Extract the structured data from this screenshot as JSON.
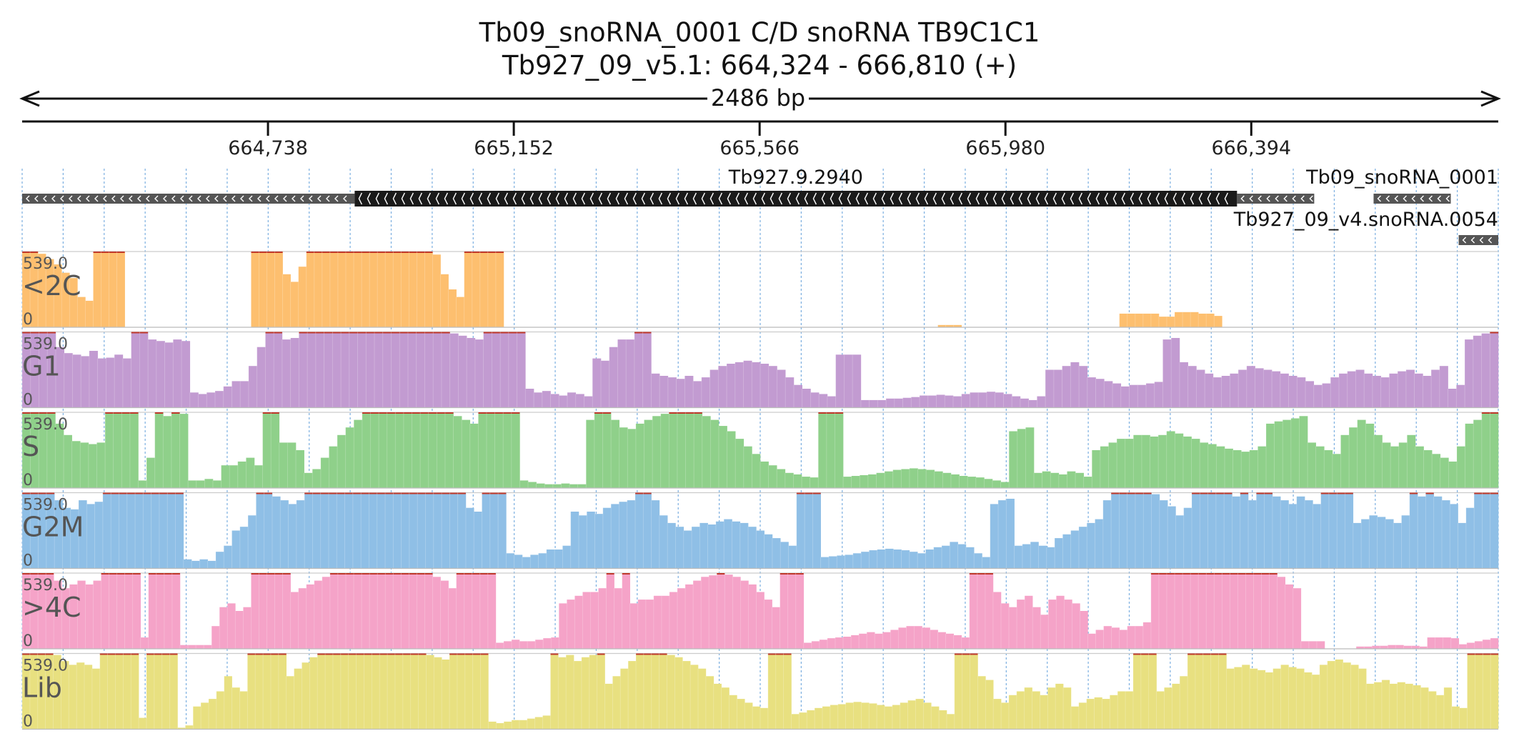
{
  "header": {
    "feature_line": "Tb09_snoRNA_0001  C/D snoRNA  TB9C1C1",
    "locus_line": "Tb927_09_v5.1: 664,324 - 666,810 (+)"
  },
  "ruler": {
    "span_label": "2486 bp",
    "start": 664324,
    "end": 666810,
    "ticks": [
      "664,738",
      "665,152",
      "665,566",
      "665,980",
      "666,394"
    ],
    "tick_values": [
      664738,
      665152,
      665566,
      665980,
      666394
    ]
  },
  "genes": [
    {
      "name": "Tb927.9.2940",
      "label_visible": true,
      "row": 0,
      "strand": "-",
      "start": 664324,
      "end": 666524,
      "cds_start": 664884,
      "cds_end": 666370
    },
    {
      "name": "Tb09_snoRNA_0001",
      "label_visible": true,
      "row": 0,
      "strand": "-",
      "start": 666524,
      "end": 666810,
      "segments": [
        [
          666370,
          666524
        ],
        [
          666600,
          666730
        ]
      ]
    },
    {
      "name": "Tb927_09_v4.snoRNA.0054",
      "label_visible": true,
      "row": 1,
      "strand": "-",
      "start": 666700,
      "end": 666810
    }
  ],
  "tracks": [
    {
      "name": "<2C",
      "color": "#fdbf6f",
      "max_label": "539.0",
      "min_label": "0",
      "values": [
        1,
        1,
        0.97,
        0.9,
        0.83,
        0.72,
        0.65,
        0.4,
        0.35,
        1,
        1,
        1,
        1,
        0,
        0,
        0,
        0,
        0,
        0,
        0,
        0,
        0,
        0,
        0,
        0,
        0,
        0,
        0,
        0,
        1,
        1,
        1,
        1,
        0.7,
        0.6,
        0.8,
        1,
        1,
        1,
        1,
        1,
        1,
        1,
        1,
        1,
        1,
        1,
        1,
        1,
        1,
        1,
        1,
        0.96,
        0.7,
        0.5,
        0.4,
        1,
        1,
        1,
        1,
        1,
        0,
        0,
        0,
        0,
        0,
        0,
        0,
        0,
        0,
        0,
        0,
        0,
        0,
        0,
        0,
        0,
        0,
        0,
        0,
        0,
        0,
        0,
        0,
        0,
        0,
        0,
        0,
        0,
        0,
        0,
        0,
        0,
        0,
        0,
        0,
        0,
        0,
        0,
        0,
        0,
        0,
        0,
        0,
        0,
        0,
        0,
        0,
        0,
        0,
        0,
        0,
        0,
        0,
        0,
        0,
        0.03,
        0.03,
        0.03,
        0,
        0,
        0,
        0,
        0,
        0,
        0,
        0,
        0,
        0,
        0,
        0,
        0,
        0,
        0,
        0,
        0,
        0,
        0,
        0,
        0.18,
        0.18,
        0.18,
        0.18,
        0.18,
        0.14,
        0.14,
        0.2,
        0.2,
        0.2,
        0.18,
        0.18,
        0.15,
        0,
        0,
        0,
        0,
        0,
        0,
        0,
        0,
        0,
        0,
        0,
        0,
        0,
        0,
        0,
        0,
        0,
        0,
        0,
        0,
        0,
        0,
        0,
        0,
        0,
        0,
        0,
        0,
        0,
        0,
        0,
        0,
        0,
        0,
        0
      ]
    },
    {
      "name": "G1",
      "color": "#c29bd1",
      "max_label": "539.0",
      "min_label": "0",
      "values": [
        1,
        1,
        1,
        1,
        0.8,
        0.72,
        0.7,
        0.68,
        0.75,
        0.65,
        0.66,
        0.7,
        0.65,
        1,
        1,
        0.9,
        0.88,
        0.86,
        0.9,
        0.88,
        0.2,
        0.18,
        0.2,
        0.22,
        0.28,
        0.35,
        0.35,
        0.55,
        0.8,
        1,
        1,
        0.9,
        0.92,
        1,
        1,
        1,
        1,
        1,
        1,
        1,
        1,
        1,
        1,
        1,
        1,
        1,
        1,
        1,
        1,
        1,
        1,
        0.98,
        0.95,
        0.92,
        0.9,
        1,
        1,
        1,
        1,
        1,
        0.25,
        0.2,
        0.22,
        0.18,
        0.16,
        0.2,
        0.18,
        0.15,
        0.65,
        0.62,
        0.8,
        0.9,
        0.9,
        1,
        1,
        0.45,
        0.42,
        0.4,
        0.38,
        0.42,
        0.35,
        0.4,
        0.5,
        0.55,
        0.58,
        0.6,
        0.62,
        0.6,
        0.58,
        0.55,
        0.5,
        0.4,
        0.3,
        0.25,
        0.2,
        0.18,
        0.15,
        0.7,
        0.7,
        0.7,
        0.1,
        0.1,
        0.1,
        0.12,
        0.12,
        0.13,
        0.14,
        0.16,
        0.16,
        0.17,
        0.16,
        0.15,
        0.18,
        0.2,
        0.2,
        0.21,
        0.2,
        0.18,
        0.15,
        0.12,
        0.1,
        0.15,
        0.5,
        0.5,
        0.55,
        0.6,
        0.55,
        0.4,
        0.38,
        0.35,
        0.32,
        0.28,
        0.3,
        0.3,
        0.32,
        0.34,
        0.9,
        0.92,
        0.6,
        0.55,
        0.5,
        0.45,
        0.4,
        0.42,
        0.45,
        0.5,
        0.55,
        0.52,
        0.5,
        0.48,
        0.45,
        0.42,
        0.4,
        0.35,
        0.3,
        0.32,
        0.4,
        0.45,
        0.48,
        0.5,
        0.45,
        0.42,
        0.4,
        0.45,
        0.48,
        0.5,
        0.45,
        0.42,
        0.5,
        0.55,
        0.25,
        0.3,
        0.9,
        0.95,
        0.98,
        1
      ]
    },
    {
      "name": "S",
      "color": "#8fd08a",
      "max_label": "539.0",
      "min_label": "0",
      "values": [
        1,
        1,
        1,
        1,
        0.85,
        0.7,
        0.62,
        0.6,
        0.58,
        0.6,
        1,
        1,
        1,
        1,
        0.1,
        0.4,
        1,
        0.95,
        1,
        0.98,
        0.1,
        0.1,
        0.12,
        0.1,
        0.3,
        0.3,
        0.35,
        0.4,
        0.3,
        1,
        1,
        0.6,
        0.6,
        0.5,
        0.2,
        0.25,
        0.4,
        0.55,
        0.7,
        0.8,
        0.9,
        1,
        1,
        1,
        1,
        1,
        1,
        1,
        1,
        1,
        1,
        1,
        0.95,
        0.9,
        0.85,
        1,
        1,
        1,
        1,
        1,
        0.1,
        0.08,
        0.06,
        0.05,
        0.05,
        0.06,
        0.05,
        0.05,
        0.9,
        1,
        1,
        0.9,
        0.8,
        0.78,
        0.85,
        0.9,
        0.95,
        0.98,
        1,
        1,
        1,
        1,
        0.95,
        0.9,
        0.82,
        0.75,
        0.65,
        0.55,
        0.45,
        0.35,
        0.3,
        0.25,
        0.2,
        0.18,
        0.15,
        0.14,
        1,
        1,
        1,
        0.15,
        0.16,
        0.17,
        0.18,
        0.2,
        0.22,
        0.24,
        0.25,
        0.26,
        0.25,
        0.24,
        0.22,
        0.2,
        0.18,
        0.16,
        0.15,
        0.14,
        0.12,
        0.1,
        0.08,
        0.75,
        0.78,
        0.8,
        0.2,
        0.22,
        0.2,
        0.18,
        0.22,
        0.2,
        0.15,
        0.5,
        0.55,
        0.6,
        0.65,
        0.65,
        0.7,
        0.7,
        0.68,
        0.7,
        0.75,
        0.72,
        0.68,
        0.65,
        0.6,
        0.58,
        0.55,
        0.52,
        0.5,
        0.48,
        0.5,
        0.55,
        0.85,
        0.88,
        0.9,
        0.92,
        0.95,
        0.6,
        0.55,
        0.5,
        0.45,
        0.7,
        0.8,
        0.9,
        0.85,
        0.7,
        0.6,
        0.55,
        0.6,
        0.7,
        0.55,
        0.5,
        0.45,
        0.4,
        0.35,
        0.55,
        0.85,
        0.9,
        1,
        1
      ]
    },
    {
      "name": "G2M",
      "color": "#8fbfe6",
      "max_label": "539.0",
      "min_label": "0",
      "values": [
        1,
        1,
        1,
        1,
        0.9,
        0.8,
        0.78,
        0.9,
        0.85,
        0.88,
        1,
        1,
        1,
        1,
        1,
        1,
        1,
        1,
        1,
        1,
        0.12,
        0.1,
        0.12,
        0.1,
        0.22,
        0.3,
        0.5,
        0.55,
        0.7,
        1,
        1,
        0.95,
        0.9,
        0.85,
        0.9,
        1,
        1,
        1,
        1,
        1,
        1,
        1,
        1,
        1,
        1,
        1,
        1,
        1,
        1,
        1,
        1,
        1,
        1,
        1,
        1,
        0.8,
        0.75,
        1,
        1,
        1,
        0.2,
        0.18,
        0.15,
        0.18,
        0.2,
        0.25,
        0.25,
        0.3,
        0.75,
        0.7,
        0.75,
        0.72,
        0.8,
        0.85,
        0.88,
        0.9,
        1,
        1,
        0.9,
        0.7,
        0.6,
        0.55,
        0.5,
        0.55,
        0.6,
        0.58,
        0.62,
        0.65,
        0.62,
        0.6,
        0.55,
        0.5,
        0.45,
        0.4,
        0.35,
        0.3,
        1,
        1,
        1,
        0.15,
        0.16,
        0.17,
        0.18,
        0.2,
        0.22,
        0.24,
        0.25,
        0.26,
        0.25,
        0.24,
        0.22,
        0.2,
        0.25,
        0.28,
        0.3,
        0.35,
        0.32,
        0.28,
        0.2,
        0.15,
        0.85,
        0.9,
        0.92,
        0.3,
        0.32,
        0.35,
        0.3,
        0.28,
        0.4,
        0.45,
        0.5,
        0.55,
        0.6,
        0.65,
        0.9,
        1,
        1,
        1,
        1,
        1,
        0.98,
        0.9,
        0.82,
        0.7,
        0.8,
        1,
        1,
        1,
        1,
        1,
        0.95,
        1,
        0.9,
        1,
        1,
        0.95,
        0.9,
        0.85,
        0.95,
        0.9,
        0.85,
        1,
        1,
        1,
        1,
        0.6,
        0.65,
        0.7,
        0.68,
        0.65,
        0.6,
        0.7,
        1,
        0.95,
        1,
        0.95,
        0.9,
        0.85,
        0.6,
        0.8,
        1,
        1,
        1
      ]
    },
    {
      "name": ">4C",
      "color": "#f5a3c8",
      "max_label": "539.0",
      "min_label": "0",
      "values": [
        1,
        1,
        1,
        1,
        0.9,
        0.8,
        0.85,
        0.9,
        0.85,
        0.9,
        1,
        1,
        1,
        1,
        1,
        0.15,
        1,
        1,
        1,
        1,
        0.05,
        0.05,
        0.05,
        0.05,
        0.3,
        0.55,
        0.6,
        0.5,
        0.55,
        1,
        1,
        1,
        1,
        1,
        0.75,
        0.8,
        0.85,
        0.9,
        0.95,
        1,
        1,
        1,
        1,
        1,
        1,
        1,
        1,
        1,
        1,
        1,
        1,
        1,
        0.95,
        0.9,
        0.8,
        1,
        1,
        1,
        1,
        1,
        0.08,
        0.1,
        0.12,
        0.1,
        0.1,
        0.12,
        0.14,
        0.15,
        0.6,
        0.65,
        0.7,
        0.75,
        0.75,
        0.8,
        1,
        0.8,
        1,
        0.6,
        0.65,
        0.65,
        0.7,
        0.7,
        0.75,
        0.8,
        0.85,
        0.9,
        0.95,
        0.97,
        1,
        0.98,
        0.95,
        0.9,
        0.85,
        0.75,
        0.65,
        0.55,
        1,
        1,
        1,
        0.08,
        0.1,
        0.12,
        0.14,
        0.15,
        0.16,
        0.18,
        0.2,
        0.22,
        0.2,
        0.22,
        0.25,
        0.28,
        0.3,
        0.3,
        0.28,
        0.25,
        0.22,
        0.2,
        0.18,
        0.15,
        1,
        1,
        1,
        0.75,
        0.6,
        0.55,
        0.65,
        0.7,
        0.55,
        0.45,
        0.65,
        0.7,
        0.65,
        0.6,
        0.5,
        0.2,
        0.25,
        0.3,
        0.28,
        0.25,
        0.3,
        0.3,
        0.35,
        1,
        1,
        1,
        1,
        1,
        1,
        1,
        1,
        1,
        1,
        1,
        1,
        1,
        1,
        1,
        1,
        0.95,
        0.85,
        0.8,
        0.1,
        0.1,
        0.1,
        0,
        0,
        0,
        0,
        0.03,
        0.03,
        0.04,
        0.04,
        0.05,
        0.05,
        0.04,
        0.04,
        0.03,
        0.15,
        0.15,
        0.15,
        0.14,
        0.06,
        0.08,
        0.1,
        0.12,
        0.14
      ]
    },
    {
      "name": "Lib",
      "color": "#e8e080",
      "max_label": "539.0",
      "min_label": "0",
      "values": [
        1,
        1,
        1,
        1,
        0.98,
        0.9,
        0.85,
        0.88,
        0.85,
        0.8,
        1,
        1,
        1,
        1,
        1,
        0.15,
        1,
        1,
        1,
        1,
        0.02,
        0.05,
        0.3,
        0.35,
        0.4,
        0.5,
        0.7,
        0.55,
        0.5,
        1,
        1,
        1,
        1,
        1,
        0.7,
        0.8,
        0.88,
        0.95,
        1,
        1,
        1,
        1,
        1,
        1,
        1,
        1,
        1,
        1,
        1,
        1,
        1,
        1,
        0.98,
        0.95,
        0.92,
        1,
        1,
        1,
        1,
        1,
        0.1,
        0.08,
        0.1,
        0.12,
        0.12,
        0.14,
        0.16,
        0.18,
        1,
        0.95,
        0.98,
        0.9,
        0.95,
        0.98,
        1,
        0.6,
        0.7,
        0.8,
        0.9,
        1,
        1,
        1,
        1,
        0.98,
        0.95,
        0.9,
        0.85,
        0.8,
        0.7,
        0.6,
        0.55,
        0.45,
        0.4,
        0.35,
        0.3,
        0.28,
        1,
        1,
        1,
        0.2,
        0.22,
        0.25,
        0.28,
        0.3,
        0.32,
        0.33,
        0.35,
        0.36,
        0.35,
        0.34,
        0.32,
        0.3,
        0.32,
        0.35,
        0.38,
        0.4,
        0.35,
        0.3,
        0.25,
        0.2,
        1,
        1,
        1,
        0.7,
        0.65,
        0.4,
        0.35,
        0.45,
        0.5,
        0.55,
        0.5,
        0.45,
        0.55,
        0.6,
        0.55,
        0.3,
        0.35,
        0.4,
        0.42,
        0.4,
        0.45,
        0.5,
        0.5,
        1,
        1,
        1,
        0.5,
        0.55,
        0.6,
        0.7,
        1,
        1,
        1,
        1,
        1,
        0.8,
        0.82,
        0.85,
        0.8,
        0.78,
        0.75,
        0.8,
        0.85,
        0.82,
        0.8,
        0.75,
        0.72,
        0.85,
        0.9,
        0.92,
        0.88,
        0.85,
        0.8,
        0.6,
        0.62,
        0.65,
        0.6,
        0.62,
        0.6,
        0.58,
        0.55,
        0.5,
        0.45,
        0.55,
        0.3,
        0.28,
        1,
        1,
        1,
        1
      ]
    }
  ]
}
